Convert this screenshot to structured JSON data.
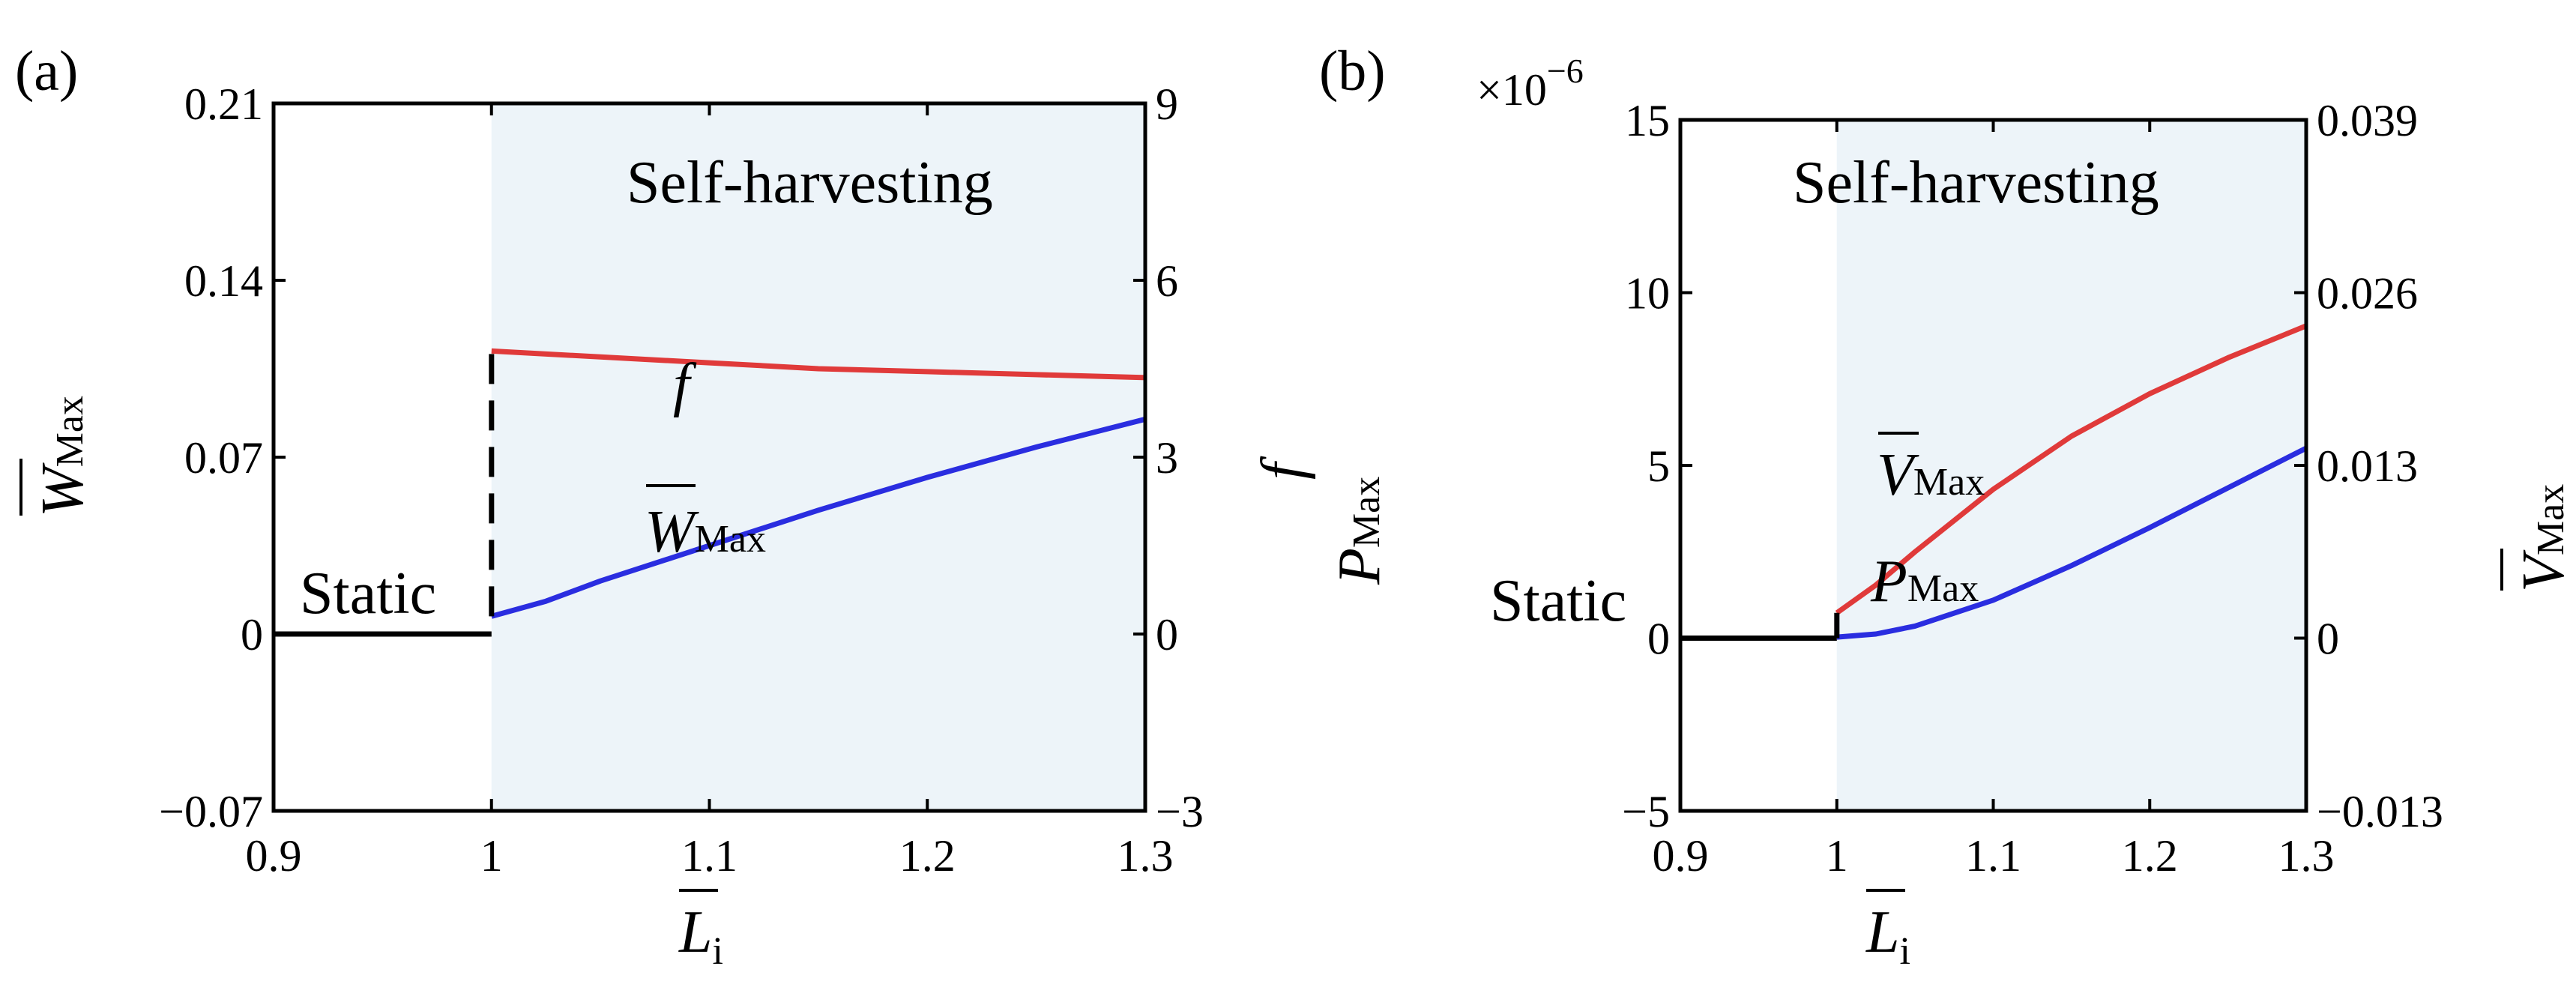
{
  "figure": {
    "panels": [
      {
        "label": "(a)",
        "region_label": "Self-harvesting",
        "static_label": "Static",
        "xlabel": {
          "main": "L",
          "sub": "i"
        },
        "ylabel_left": {
          "main": "W",
          "sub": "Max"
        },
        "ylabel_right": {
          "main": "f"
        },
        "curve_labels": [
          {
            "series": "f",
            "main": "f",
            "sub": ""
          },
          {
            "series": "W_Max",
            "main": "W",
            "sub": "Max"
          }
        ]
      },
      {
        "label": "(b)",
        "region_label": "Self-harvesting",
        "static_label": "Static",
        "exponent_label": "×10",
        "exponent_power": "−6",
        "xlabel": {
          "main": "L",
          "sub": "i"
        },
        "ylabel_left": {
          "main": "P",
          "sub": "Max"
        },
        "ylabel_right": {
          "main": "V",
          "sub": "Max"
        },
        "curve_labels": [
          {
            "series": "V_Max",
            "main": "V",
            "sub": "Max"
          },
          {
            "series": "P_Max",
            "main": "P",
            "sub": "Max"
          }
        ]
      }
    ]
  },
  "chart_data": [
    {
      "type": "line",
      "xlim": [
        0.9,
        1.3
      ],
      "xticks": [
        "0.9",
        "1",
        "1.1",
        "1.2",
        "1.3"
      ],
      "ylim_left": [
        -0.07,
        0.21
      ],
      "yticks_left": [
        "−0.07",
        "0",
        "0.07",
        "0.14",
        "0.21"
      ],
      "ylim_right": [
        -3,
        9
      ],
      "yticks_right": [
        "−3",
        "0",
        "3",
        "6",
        "9"
      ],
      "shaded_region_x": [
        1.0,
        1.3
      ],
      "shade_color": "#edf4f9",
      "series": [
        {
          "name": "f",
          "axis": "right",
          "color": "#e03a3a",
          "x": [
            1.0,
            1.05,
            1.1,
            1.15,
            1.2,
            1.25,
            1.3
          ],
          "y": [
            4.8,
            4.7,
            4.6,
            4.5,
            4.45,
            4.4,
            4.35
          ]
        },
        {
          "name": "W_Max",
          "axis": "left",
          "color": "#2a2de0",
          "x": [
            1.0,
            1.025,
            1.05,
            1.1,
            1.15,
            1.2,
            1.25,
            1.3
          ],
          "y": [
            0.007,
            0.013,
            0.021,
            0.035,
            0.049,
            0.062,
            0.074,
            0.085
          ]
        },
        {
          "name": "static_W",
          "axis": "left",
          "color": "#000000",
          "x": [
            0.9,
            1.0
          ],
          "y": [
            0,
            0
          ]
        },
        {
          "name": "jump_f",
          "axis": "right",
          "color": "#000000",
          "dashed": true,
          "x": [
            1.0,
            1.0
          ],
          "y": [
            0.3,
            4.8
          ]
        }
      ]
    },
    {
      "type": "line",
      "xlim": [
        0.9,
        1.3
      ],
      "xticks": [
        "0.9",
        "1",
        "1.1",
        "1.2",
        "1.3"
      ],
      "ylim_left": [
        -5,
        15
      ],
      "yticks_left": [
        "−5",
        "0",
        "5",
        "10",
        "15"
      ],
      "ylim_right": [
        -0.013,
        0.039
      ],
      "yticks_right": [
        "−0.013",
        "0",
        "0.013",
        "0.026",
        "0.039"
      ],
      "shaded_region_x": [
        1.0,
        1.3
      ],
      "shade_color": "#edf4f9",
      "series": [
        {
          "name": "V_Max",
          "axis": "right",
          "color": "#e03a3a",
          "x": [
            1.0,
            1.025,
            1.05,
            1.1,
            1.15,
            1.2,
            1.25,
            1.3
          ],
          "y": [
            0.0019,
            0.004,
            0.0065,
            0.0112,
            0.0152,
            0.0184,
            0.0211,
            0.0235
          ]
        },
        {
          "name": "P_Max",
          "axis": "left",
          "color": "#2a2de0",
          "x": [
            1.0,
            1.025,
            1.05,
            1.1,
            1.15,
            1.2,
            1.25,
            1.3
          ],
          "y": [
            0.03,
            0.12,
            0.35,
            1.1,
            2.1,
            3.2,
            4.35,
            5.5
          ]
        },
        {
          "name": "static_P",
          "axis": "left",
          "color": "#000000",
          "x": [
            0.9,
            1.0
          ],
          "y": [
            0,
            0
          ]
        },
        {
          "name": "jump_V",
          "axis": "right",
          "color": "#000000",
          "x": [
            1.0,
            1.0
          ],
          "y": [
            0,
            0.0019
          ]
        }
      ]
    }
  ]
}
